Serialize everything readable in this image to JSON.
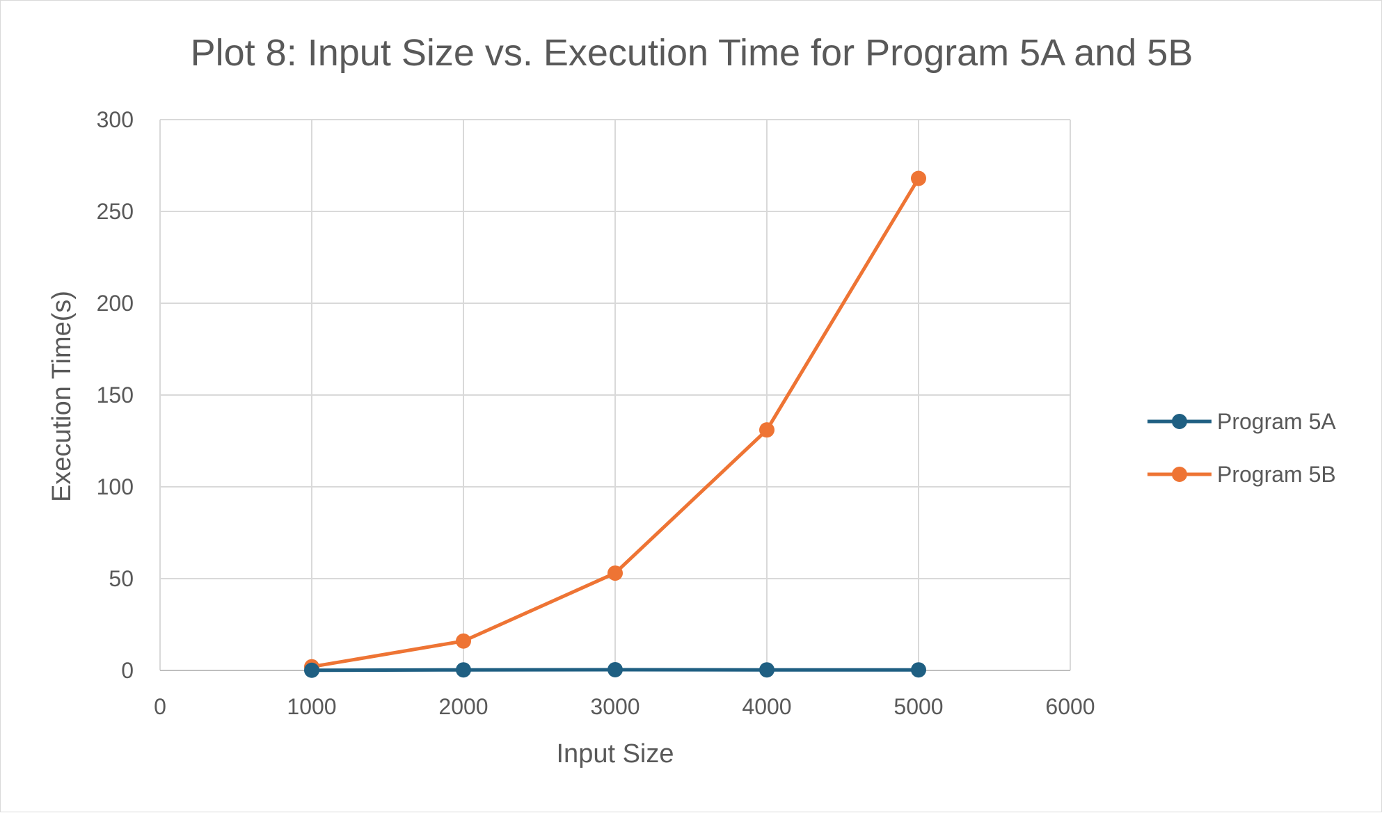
{
  "chart_data": {
    "type": "line",
    "title": "Plot 8: Input Size vs. Execution Time for Program 5A and 5B",
    "xlabel": "Input Size",
    "ylabel": "Execution Time(s)",
    "xlim": [
      0,
      6000
    ],
    "ylim": [
      0,
      300
    ],
    "x_ticks": [
      0,
      1000,
      2000,
      3000,
      4000,
      5000,
      6000
    ],
    "y_ticks": [
      0,
      50,
      100,
      150,
      200,
      250,
      300
    ],
    "grid": true,
    "legend_position": "right",
    "x": [
      1000,
      2000,
      3000,
      4000,
      5000
    ],
    "series": [
      {
        "name": "Program 5A",
        "color": "#1f5f82",
        "values": [
          0.1,
          0.3,
          0.4,
          0.3,
          0.3
        ]
      },
      {
        "name": "Program 5B",
        "color": "#ee7434",
        "values": [
          2,
          16,
          53,
          131,
          268
        ]
      }
    ]
  }
}
